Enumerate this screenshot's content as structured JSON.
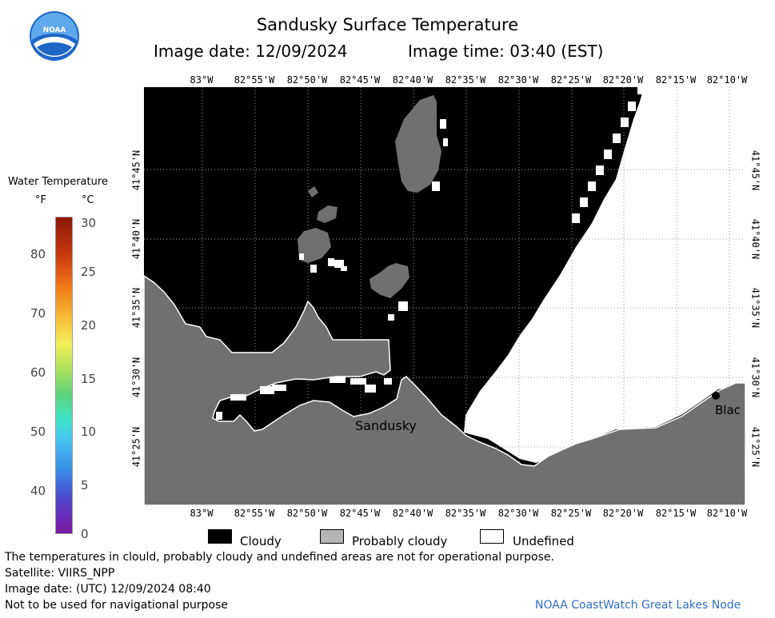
{
  "header": {
    "title": "Sandusky Surface Temperature",
    "image_date": "Image date: 12/09/2024",
    "image_time": "Image time: 03:40 (EST)"
  },
  "logo": {
    "text": "NOAA"
  },
  "map": {
    "lon_labels": [
      "83°W",
      "82°55'W",
      "82°50'W",
      "82°45'W",
      "82°40'W",
      "82°35'W",
      "82°30'W",
      "82°25'W",
      "82°20'W",
      "82°15'W",
      "82°10'W"
    ],
    "lat_labels": [
      "41°45'N",
      "41°40'N",
      "41°35'N",
      "41°30'N",
      "41°25'N"
    ],
    "city_label": "Sandusky",
    "partial_label": "Blac",
    "colors": {
      "cloudy": "#000000",
      "probably_cloudy": "#707070",
      "undefined": "#ffffff"
    }
  },
  "colorbar": {
    "title": "Water Temperature",
    "unit_f": "°F",
    "unit_c": "°C",
    "f_ticks": [
      "80",
      "70",
      "60",
      "50",
      "40"
    ],
    "c_ticks": [
      "30",
      "25",
      "20",
      "15",
      "10",
      "5",
      "0"
    ]
  },
  "legend": {
    "cloudy": "Cloudy",
    "probably_cloudy": "Probably cloudy",
    "undefined": "Undefined"
  },
  "footer": {
    "disclaimer": "The temperatures in clould, probably cloudy and undefined areas are not for operational purpose.",
    "satellite": "Satellite: VIIRS_NPP",
    "utc_date": "Image date: (UTC) 12/09/2024  08:40",
    "nav_warning": "Not to be used for navigational purpose",
    "credit": "NOAA CoastWatch Great Lakes Node"
  }
}
